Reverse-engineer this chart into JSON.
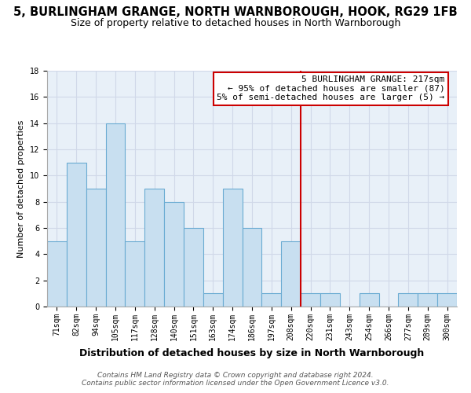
{
  "title": "5, BURLINGHAM GRANGE, NORTH WARNBOROUGH, HOOK, RG29 1FB",
  "subtitle": "Size of property relative to detached houses in North Warnborough",
  "xlabel": "Distribution of detached houses by size in North Warnborough",
  "ylabel": "Number of detached properties",
  "bin_labels": [
    "71sqm",
    "82sqm",
    "94sqm",
    "105sqm",
    "117sqm",
    "128sqm",
    "140sqm",
    "151sqm",
    "163sqm",
    "174sqm",
    "186sqm",
    "197sqm",
    "208sqm",
    "220sqm",
    "231sqm",
    "243sqm",
    "254sqm",
    "266sqm",
    "277sqm",
    "289sqm",
    "300sqm"
  ],
  "bar_heights": [
    5,
    11,
    9,
    14,
    5,
    9,
    8,
    6,
    1,
    9,
    6,
    1,
    5,
    1,
    1,
    0,
    1,
    0,
    1,
    1,
    1
  ],
  "bar_color": "#c8dff0",
  "bar_edge_color": "#6aabd2",
  "grid_color": "#d0d8e8",
  "bg_color": "#e8f0f8",
  "vline_x_index": 13,
  "vline_color": "#cc0000",
  "annotation_title": "5 BURLINGHAM GRANGE: 217sqm",
  "annotation_line1": "← 95% of detached houses are smaller (87)",
  "annotation_line2": "5% of semi-detached houses are larger (5) →",
  "annotation_box_color": "#cc0000",
  "ylim": [
    0,
    18
  ],
  "yticks": [
    0,
    2,
    4,
    6,
    8,
    10,
    12,
    14,
    16,
    18
  ],
  "footer_line1": "Contains HM Land Registry data © Crown copyright and database right 2024.",
  "footer_line2": "Contains public sector information licensed under the Open Government Licence v3.0.",
  "title_fontsize": 10.5,
  "subtitle_fontsize": 9,
  "xlabel_fontsize": 9,
  "ylabel_fontsize": 8,
  "tick_fontsize": 7,
  "footer_fontsize": 6.5,
  "annotation_fontsize": 8
}
